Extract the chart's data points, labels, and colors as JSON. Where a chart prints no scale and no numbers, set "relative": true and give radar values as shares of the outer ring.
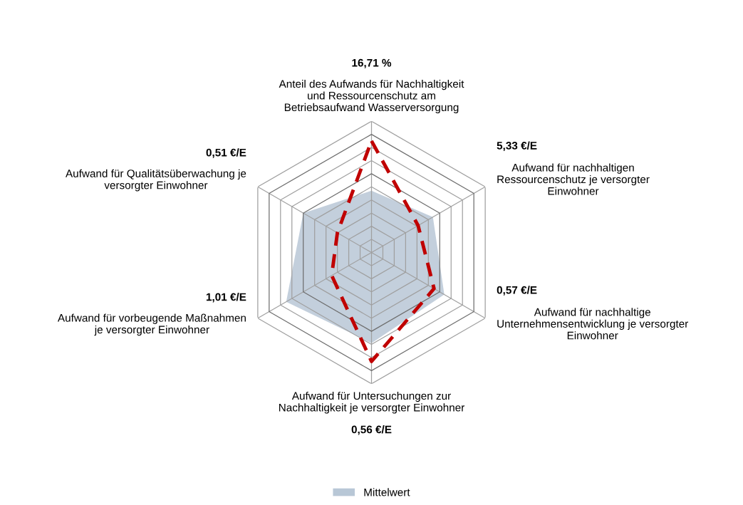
{
  "chart_data": {
    "type": "radar",
    "relative": true,
    "grid": true,
    "legend": "bottom",
    "categories": [
      "Anteil des Aufwands für Nachhaltigkeit\nund Ressourcenschutz am\nBetriebsaufwand Wasserversorgung",
      "Aufwand für nachhaltigen\nRessourcenschutz je versorgter\nEinwohner",
      "Aufwand für nachhaltige\nUnternehmensentwicklung je versorgter\nEinwohner",
      "Aufwand für Untersuchungen zur\nNachhaltigkeit je versorgter Einwohner",
      "Aufwand für vorbeugende Maßnahmen\nje versorgter Einwohner",
      "Aufwand für Qualitätsüberwachung je\nversorgter Einwohner"
    ],
    "annotations": [
      "16,71 %",
      "5,33 €/E",
      "0,57 €/E",
      "0,56 €/E",
      "1,01 €/E",
      "0,51 €/E"
    ],
    "series": [
      {
        "color": "#c00000",
        "line_style": "dashed",
        "values": [
          0.85,
          0.41,
          0.55,
          0.83,
          0.35,
          0.3
        ]
      },
      {
        "name": "Mittelwert",
        "color": "#b8c7d6",
        "type": "area",
        "values": [
          0.47,
          0.54,
          0.64,
          0.69,
          0.75,
          0.6
        ]
      }
    ]
  }
}
